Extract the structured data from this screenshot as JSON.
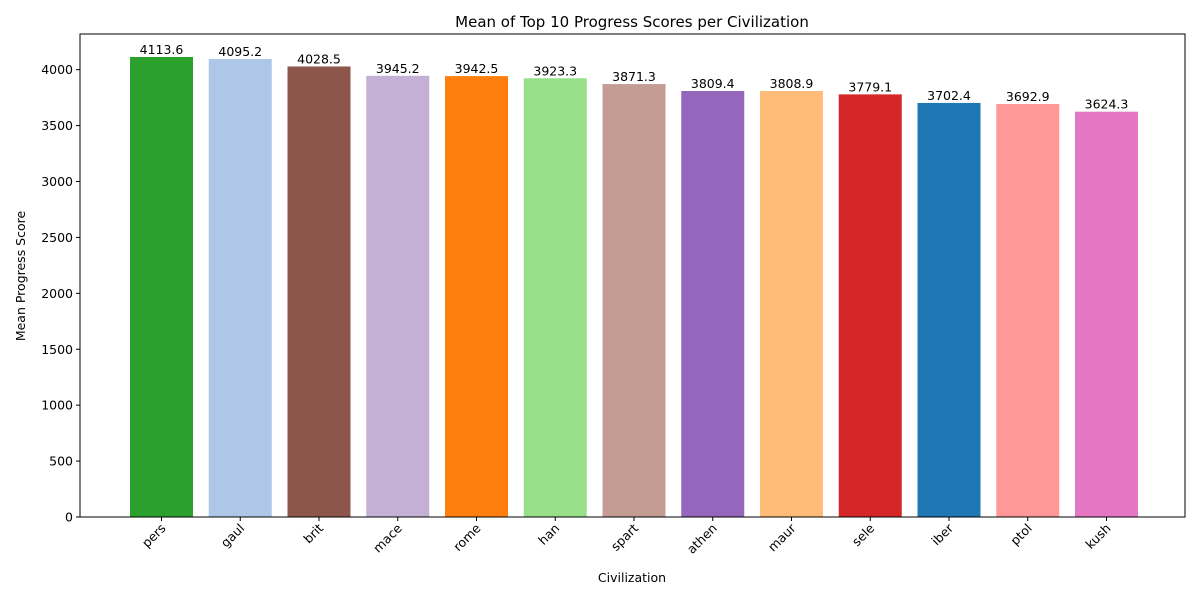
{
  "chart_data": {
    "type": "bar",
    "title": "Mean of Top 10 Progress Scores per Civilization",
    "xlabel": "Civilization",
    "ylabel": "Mean Progress Score",
    "categories": [
      "pers",
      "gaul",
      "brit",
      "mace",
      "rome",
      "han",
      "spart",
      "athen",
      "maur",
      "sele",
      "iber",
      "ptol",
      "kush"
    ],
    "values": [
      4113.6,
      4095.2,
      4028.5,
      3945.2,
      3942.5,
      3923.3,
      3871.3,
      3809.4,
      3808.9,
      3779.1,
      3702.4,
      3692.9,
      3624.3
    ],
    "value_labels": [
      "4113.6",
      "4095.2",
      "4028.5",
      "3945.2",
      "3942.5",
      "3923.3",
      "3871.3",
      "3809.4",
      "3808.9",
      "3779.1",
      "3702.4",
      "3692.9",
      "3624.3"
    ],
    "colors": [
      "#2ca02c",
      "#aec7e8",
      "#8c564b",
      "#c5b0d5",
      "#ff7f0e",
      "#98df8a",
      "#c49c94",
      "#9467bd",
      "#ffbb78",
      "#d62728",
      "#1f77b4",
      "#ff9896",
      "#e377c2"
    ],
    "ylim": [
      0,
      4319
    ],
    "yticks": [
      0,
      500,
      1000,
      1500,
      2000,
      2500,
      3000,
      3500,
      4000
    ],
    "grid": false
  }
}
